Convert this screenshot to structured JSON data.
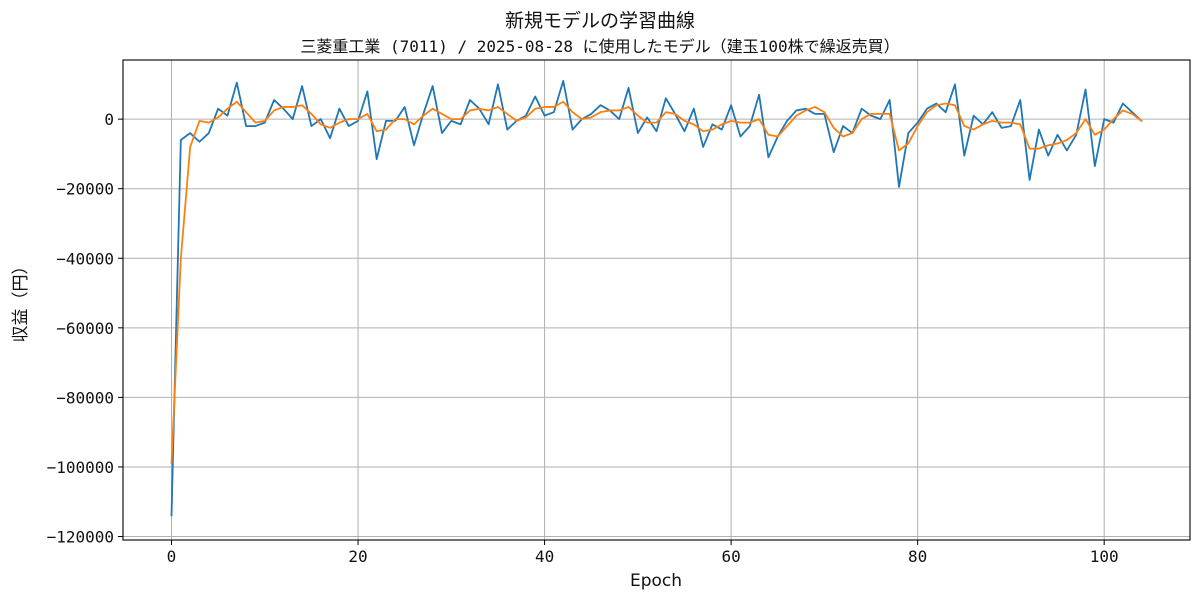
{
  "chart_data": {
    "type": "line",
    "title": "新規モデルの学習曲線",
    "subtitle": "三菱重工業 (7011) / 2025-08-28 に使用したモデル（建玉100株で繰返売買）",
    "xlabel": "Epoch",
    "ylabel": "収益（円）",
    "xlim": [
      -5.2,
      109.2
    ],
    "ylim": [
      -121000,
      17000
    ],
    "xticks": [
      0,
      20,
      40,
      60,
      80,
      100
    ],
    "xtick_labels": [
      "0",
      "20",
      "40",
      "60",
      "80",
      "100"
    ],
    "yticks": [
      -120000,
      -100000,
      -80000,
      -60000,
      -40000,
      -20000,
      0
    ],
    "ytick_labels": [
      "−120000",
      "−100000",
      "−80000",
      "−60000",
      "−40000",
      "−20000",
      "0"
    ],
    "grid": true,
    "series": [
      {
        "color": "#1f77b4",
        "style": "raw",
        "x": [
          0,
          1,
          2,
          3,
          4,
          5,
          6,
          7,
          8,
          9,
          10,
          11,
          12,
          13,
          14,
          15,
          16,
          17,
          18,
          19,
          20,
          21,
          22,
          23,
          24,
          25,
          26,
          27,
          28,
          29,
          30,
          31,
          32,
          33,
          34,
          35,
          36,
          37,
          38,
          39,
          40,
          41,
          42,
          43,
          44,
          45,
          46,
          47,
          48,
          49,
          50,
          51,
          52,
          53,
          54,
          55,
          56,
          57,
          58,
          59,
          60,
          61,
          62,
          63,
          64,
          65,
          66,
          67,
          68,
          69,
          70,
          71,
          72,
          73,
          74,
          75,
          76,
          77,
          78,
          79,
          80,
          81,
          82,
          83,
          84,
          85,
          86,
          87,
          88,
          89,
          90,
          91,
          92,
          93,
          94,
          95,
          96,
          97,
          98,
          99,
          100,
          101,
          102,
          103,
          104
        ],
        "values": [
          -114000,
          -6000,
          -4000,
          -6500,
          -4000,
          3000,
          1000,
          10500,
          -2000,
          -2000,
          -1000,
          5500,
          3000,
          0,
          9500,
          -2000,
          0,
          -5500,
          3000,
          -2000,
          -500,
          8000,
          -11500,
          -500,
          -500,
          3500,
          -7500,
          1500,
          9500,
          -4000,
          -500,
          -1500,
          5500,
          3000,
          -1500,
          10000,
          -3000,
          -500,
          1000,
          6500,
          1000,
          2000,
          11000,
          -3000,
          0,
          1500,
          4000,
          2500,
          0,
          9000,
          -4000,
          500,
          -3500,
          6000,
          1500,
          -3500,
          3000,
          -8000,
          -1500,
          -3000,
          4000,
          -5000,
          -2000,
          7000,
          -11000,
          -5000,
          -500,
          2500,
          3000,
          1500,
          1500,
          -9500,
          -2000,
          -4000,
          3000,
          1000,
          0,
          5500,
          -19500,
          -4000,
          -1000,
          3000,
          4500,
          2000,
          10000,
          -10500,
          1000,
          -1500,
          2000,
          -2500,
          -2000,
          5500,
          -17500,
          -3000,
          -10500,
          -4500,
          -9000,
          -4500,
          8500,
          -13500,
          0,
          -1000,
          4500,
          2000,
          -500
        ]
      },
      {
        "color": "#ff7f0e",
        "style": "smoothed",
        "x": [
          0,
          1,
          2,
          3,
          4,
          5,
          6,
          7,
          8,
          9,
          10,
          11,
          12,
          13,
          14,
          15,
          16,
          17,
          18,
          19,
          20,
          21,
          22,
          23,
          24,
          25,
          26,
          27,
          28,
          29,
          30,
          31,
          32,
          33,
          34,
          35,
          36,
          37,
          38,
          39,
          40,
          41,
          42,
          43,
          44,
          45,
          46,
          47,
          48,
          49,
          50,
          51,
          52,
          53,
          54,
          55,
          56,
          57,
          58,
          59,
          60,
          61,
          62,
          63,
          64,
          65,
          66,
          67,
          68,
          69,
          70,
          71,
          72,
          73,
          74,
          75,
          76,
          77,
          78,
          79,
          80,
          81,
          82,
          83,
          84,
          85,
          86,
          87,
          88,
          89,
          90,
          91,
          92,
          93,
          94,
          95,
          96,
          97,
          98,
          99,
          100,
          101,
          102,
          103,
          104
        ],
        "values": [
          -99000,
          -40000,
          -8000,
          -500,
          -1000,
          500,
          3000,
          5000,
          2000,
          -1000,
          -500,
          2500,
          3500,
          3500,
          4000,
          1500,
          -1500,
          -2500,
          -1000,
          0,
          0,
          1500,
          -3500,
          -3000,
          0,
          0,
          -1500,
          1000,
          3000,
          1500,
          0,
          0,
          2500,
          3000,
          2500,
          3500,
          1500,
          -500,
          500,
          3000,
          3500,
          3500,
          5000,
          2000,
          0,
          500,
          2000,
          2500,
          2500,
          3500,
          1000,
          -1000,
          -1000,
          2000,
          1500,
          -500,
          -1500,
          -3500,
          -3000,
          -1500,
          -500,
          -1000,
          -1000,
          0,
          -4500,
          -5000,
          -2000,
          1000,
          2500,
          3500,
          2000,
          -2500,
          -5000,
          -4000,
          0,
          1500,
          1500,
          1500,
          -9000,
          -7000,
          -2000,
          2000,
          4000,
          4500,
          4000,
          -2000,
          -3000,
          -1500,
          -500,
          -1000,
          -1000,
          -1500,
          -8500,
          -8500,
          -7500,
          -7000,
          -6000,
          -4000,
          0,
          -4500,
          -3000,
          0,
          2500,
          1500,
          -500
        ]
      }
    ]
  }
}
